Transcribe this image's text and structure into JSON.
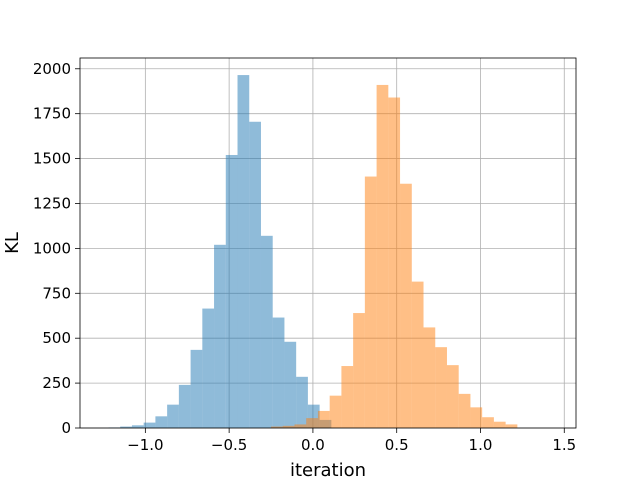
{
  "chart_data": {
    "type": "bar",
    "subtype": "histogram",
    "title": "",
    "xlabel": "iteration",
    "ylabel": "KL",
    "xlim": [
      -1.39,
      1.57
    ],
    "ylim": [
      0,
      2060
    ],
    "xticks": [
      -1.0,
      -0.5,
      0.0,
      0.5,
      1.0,
      1.5
    ],
    "xtick_labels": [
      "−1.0",
      "−0.5",
      "0.0",
      "0.5",
      "1.0",
      "1.5"
    ],
    "yticks": [
      0,
      250,
      500,
      750,
      1000,
      1250,
      1500,
      1750,
      2000
    ],
    "ytick_labels": [
      "0",
      "250",
      "500",
      "750",
      "1000",
      "1250",
      "1500",
      "1750",
      "2000"
    ],
    "grid": true,
    "legend": "none",
    "bin_width": 0.07,
    "overlay_alpha": 0.5,
    "series": [
      {
        "color": "#1f77b4",
        "bin_starts": [
          -1.22,
          -1.15,
          -1.08,
          -1.01,
          -0.94,
          -0.87,
          -0.8,
          -0.73,
          -0.66,
          -0.59,
          -0.52,
          -0.45,
          -0.38,
          -0.31,
          -0.24,
          -0.17,
          -0.1,
          -0.03,
          0.04
        ],
        "values": [
          3,
          8,
          15,
          30,
          65,
          130,
          240,
          435,
          665,
          1020,
          1520,
          1965,
          1705,
          1070,
          615,
          480,
          285,
          130,
          45
        ]
      },
      {
        "color": "#ff7f0e",
        "bin_starts": [
          -0.25,
          -0.18,
          -0.11,
          -0.04,
          0.03,
          0.1,
          0.17,
          0.24,
          0.31,
          0.38,
          0.45,
          0.52,
          0.59,
          0.66,
          0.73,
          0.8,
          0.87,
          0.94,
          1.01,
          1.08,
          1.15
        ],
        "values": [
          8,
          12,
          20,
          55,
          95,
          180,
          345,
          640,
          1400,
          1910,
          1840,
          1360,
          815,
          560,
          450,
          350,
          190,
          115,
          60,
          35,
          20
        ]
      }
    ]
  }
}
